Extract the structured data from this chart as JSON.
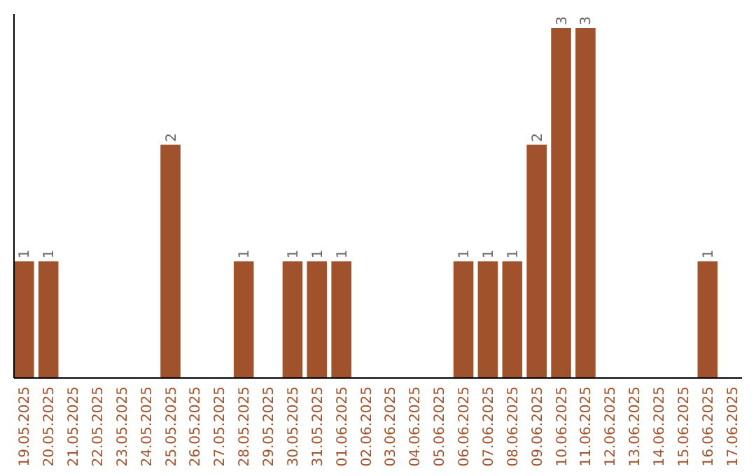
{
  "chart_data": {
    "type": "bar",
    "categories": [
      "19.05.2025",
      "20.05.2025",
      "21.05.2025",
      "22.05.2025",
      "23.05.2025",
      "24.05.2025",
      "25.05.2025",
      "26.05.2025",
      "27.05.2025",
      "28.05.2025",
      "29.05.2025",
      "30.05.2025",
      "31.05.2025",
      "01.06.2025",
      "02.06.2025",
      "03.06.2025",
      "04.06.2025",
      "05.06.2025",
      "06.06.2025",
      "07.06.2025",
      "08.06.2025",
      "09.06.2025",
      "10.06.2025",
      "11.06.2025",
      "12.06.2025",
      "13.06.2025",
      "14.06.2025",
      "15.06.2025",
      "16.06.2025",
      "17.06.2025"
    ],
    "values": [
      1,
      1,
      0,
      0,
      0,
      0,
      2,
      0,
      0,
      1,
      0,
      1,
      1,
      1,
      0,
      0,
      0,
      0,
      1,
      1,
      1,
      2,
      3,
      3,
      0,
      0,
      0,
      0,
      1,
      0
    ],
    "value_labels": [
      "1",
      "1",
      null,
      null,
      null,
      null,
      "2",
      null,
      null,
      "1",
      null,
      "1",
      "1",
      "1",
      null,
      null,
      null,
      null,
      "1",
      "1",
      "1",
      "2",
      "3",
      "3",
      null,
      null,
      null,
      null,
      "1",
      null
    ],
    "color": "#a0522d"
  }
}
